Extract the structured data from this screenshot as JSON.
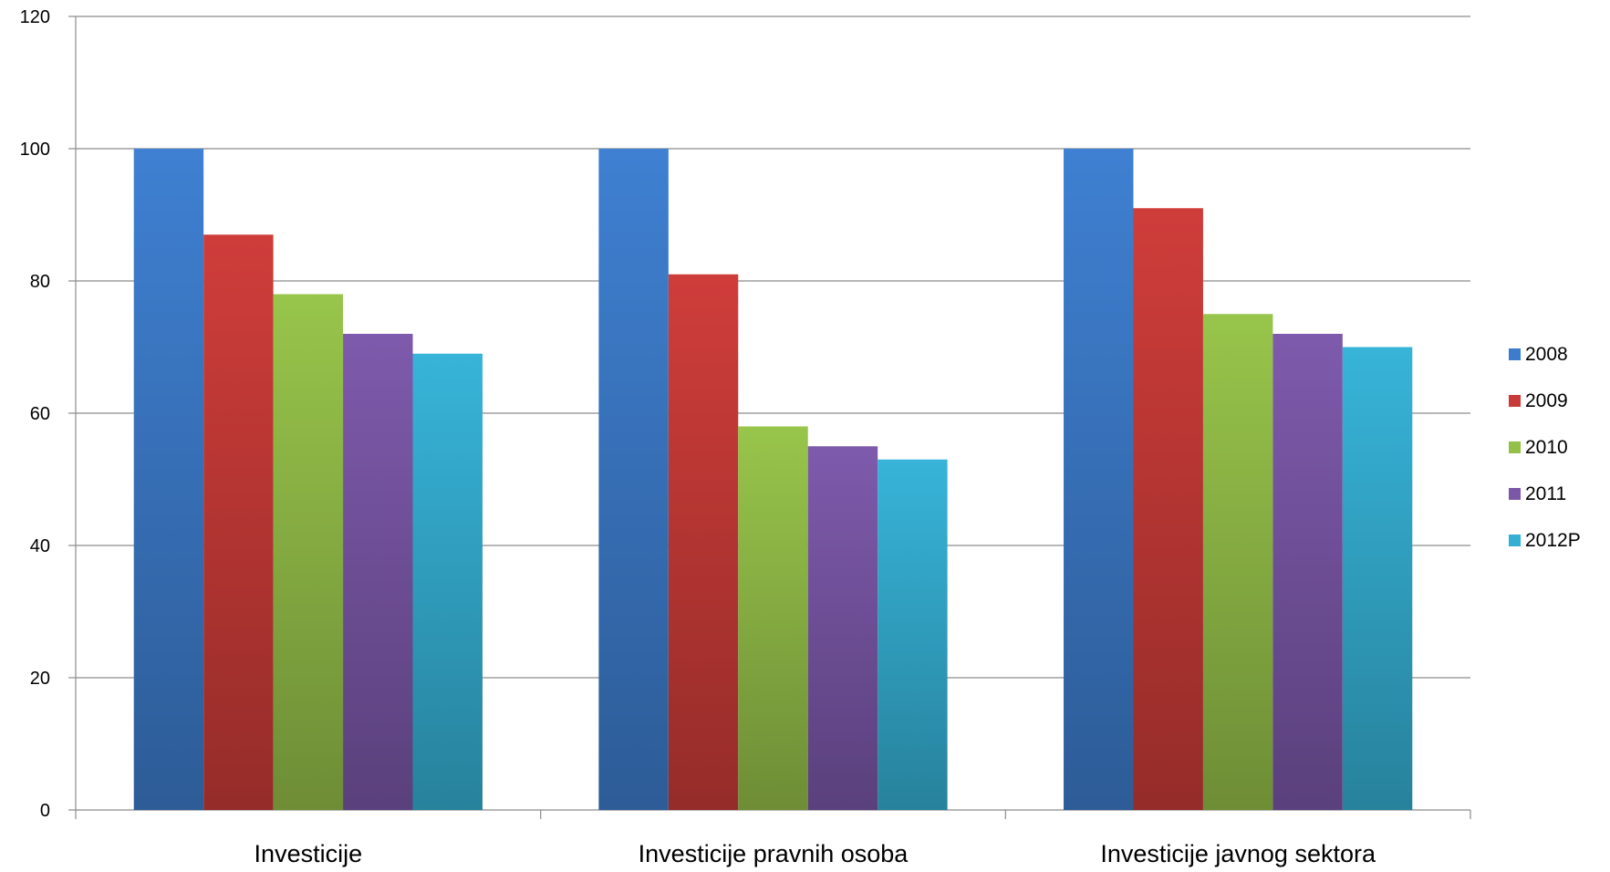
{
  "chart_data": {
    "type": "bar",
    "categories": [
      "Investicije",
      "Investicije pravnih osoba",
      "Investicije javnog sektora"
    ],
    "series": [
      {
        "name": "2008",
        "values": [
          100,
          100,
          100
        ],
        "color": "#3d7ccc"
      },
      {
        "name": "2009",
        "values": [
          87,
          81,
          91
        ],
        "color": "#c93b38"
      },
      {
        "name": "2010",
        "values": [
          78,
          58,
          75
        ],
        "color": "#94bf49"
      },
      {
        "name": "2011",
        "values": [
          72,
          55,
          72
        ],
        "color": "#7a57a7"
      },
      {
        "name": "2012P",
        "values": [
          69,
          53,
          70
        ],
        "color": "#35afd3"
      }
    ],
    "ylim": [
      0,
      120
    ],
    "yticks": [
      0,
      20,
      40,
      60,
      80,
      100,
      120
    ],
    "grid": true,
    "legend_position": "right",
    "title": "",
    "xlabel": "",
    "ylabel": ""
  }
}
